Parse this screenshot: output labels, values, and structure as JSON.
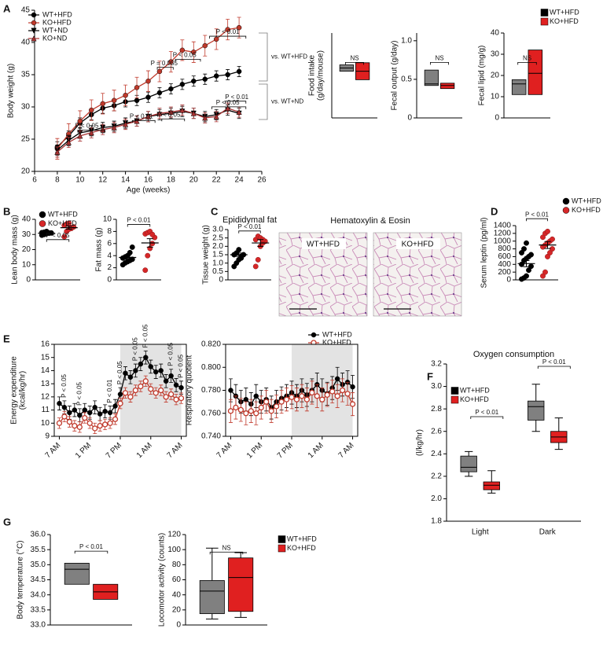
{
  "chart_data": [
    {
      "panel": "A",
      "type": "line",
      "ylabel": "Body weight (g)",
      "xlabel": "Age (weeks)",
      "x": [
        8,
        9,
        10,
        11,
        12,
        13,
        14,
        15,
        16,
        17,
        18,
        19,
        20,
        21,
        22,
        23,
        24
      ],
      "xlim": [
        6,
        26
      ],
      "xticks": [
        6,
        8,
        10,
        12,
        14,
        16,
        18,
        20,
        22,
        24,
        26
      ],
      "ylim": [
        20,
        45
      ],
      "yticks": [
        20,
        25,
        30,
        35,
        40,
        45
      ],
      "series": [
        {
          "name": "WT+HFD",
          "color": "#000000",
          "marker": "circle",
          "error": 0.8,
          "values": [
            23.8,
            25.5,
            27.5,
            28.8,
            29.8,
            30.2,
            30.8,
            31,
            31.5,
            32.2,
            32.8,
            33.5,
            34,
            34.3,
            34.8,
            35,
            35.5
          ]
        },
        {
          "name": "KO+HFD",
          "color": "#c0392b",
          "marker": "circle",
          "error": 1.6,
          "values": [
            23.5,
            25.8,
            27.8,
            29.5,
            30.5,
            31,
            31.8,
            33,
            34,
            35.5,
            37,
            38.8,
            38.5,
            39.5,
            40.5,
            42,
            42.3
          ]
        },
        {
          "name": "WT+ND",
          "color": "#000000",
          "marker": "triangle-down",
          "error": 0.8,
          "values": [
            23.3,
            24.8,
            26,
            26.3,
            26.8,
            27,
            27.5,
            27.8,
            28.5,
            28.8,
            29,
            29.3,
            29,
            28.5,
            28.8,
            29.5,
            29
          ]
        },
        {
          "name": "KO+ND",
          "color": "#a83232",
          "marker": "triangle-up",
          "error": 0.8,
          "values": [
            23,
            24.5,
            25.5,
            26,
            26.5,
            26.8,
            27.3,
            27.8,
            28.5,
            29,
            29.2,
            29.5,
            29,
            28.3,
            28.5,
            29.8,
            29.2
          ]
        }
      ],
      "annotations": [
        "P < 0.01",
        "P < 0.05",
        "P = 0.055",
        "P < 0.01",
        "P < 0.05",
        "P < 0.01",
        "P < 0.05",
        "P < 0.05"
      ],
      "comparisons": [
        "vs. WT+HFD",
        "vs. WT+ND"
      ]
    },
    {
      "type": "box",
      "ylabel": [
        "Food intake",
        "(g/day/mouse)"
      ],
      "ylim": [
        0,
        4
      ],
      "series": [
        {
          "color": "#808080",
          "boxes": [
            {
              "q1": 2.2,
              "median": 2.35,
              "q3": 2.5
            }
          ]
        },
        {
          "color": "#e02020",
          "boxes": [
            {
              "q1": 1.8,
              "median": 2.2,
              "q3": 2.6
            }
          ]
        }
      ],
      "annotations": [
        "NS"
      ]
    },
    {
      "type": "box",
      "ylabel": "Fecal output (g/day)",
      "ylim": [
        0,
        1.1
      ],
      "yticks": [
        0,
        0.5,
        {
          "value": 1,
          "label": "1.0"
        }
      ],
      "series": [
        {
          "color": "#808080",
          "boxes": [
            {
              "q1": 0.42,
              "median": 0.44,
              "q3": 0.62
            }
          ]
        },
        {
          "color": "#e02020",
          "boxes": [
            {
              "q1": 0.38,
              "median": 0.42,
              "q3": 0.45
            }
          ]
        }
      ],
      "annotations": [
        "NS"
      ]
    },
    {
      "type": "box",
      "ylabel": "Fecal lipid (mg/g)",
      "ylim": [
        0,
        40
      ],
      "yticks": [
        0,
        10,
        20,
        30,
        40
      ],
      "series": [
        {
          "name": "WT+HFD",
          "color": "#808080",
          "boxes": [
            {
              "q1": 11,
              "median": 16,
              "q3": 18
            }
          ]
        },
        {
          "name": "KO+HFD",
          "color": "#e02020",
          "boxes": [
            {
              "q1": 11,
              "median": 21,
              "q3": 32
            }
          ]
        }
      ],
      "annotations": [
        "NS"
      ]
    },
    {
      "panel": "B",
      "type": "dot",
      "ylabel": "Lean body mass (g)",
      "ylim": [
        0,
        40
      ],
      "yticks": [
        0,
        10,
        20,
        30,
        40
      ],
      "series": [
        {
          "name": "WT+HFD",
          "color": "#000000",
          "points": [
            29.5,
            30,
            30.5,
            31,
            31,
            31.2,
            31.5,
            32,
            30.8
          ],
          "mean": 30.8,
          "sem": 0.4
        },
        {
          "name": "KO+HFD",
          "color": "#d62728",
          "points": [
            28.5,
            32,
            33.5,
            34,
            35,
            36,
            37,
            37.5,
            34.5
          ],
          "mean": 34.5,
          "sem": 1.0
        }
      ],
      "annotations": [
        "P < 0.05"
      ]
    },
    {
      "type": "dot",
      "ylabel": "Fat mass (g)",
      "ylim": [
        0,
        10
      ],
      "yticks": [
        0,
        2,
        4,
        6,
        8,
        10
      ],
      "series": [
        {
          "color": "#000000",
          "points": [
            2.5,
            2.8,
            3.0,
            3.2,
            3.4,
            3.6,
            3.8,
            4.0,
            4.5,
            5.4
          ],
          "mean": 3.7,
          "sem": 0.3
        },
        {
          "color": "#d62728",
          "points": [
            1.6,
            4.0,
            5.2,
            6.0,
            7.0,
            7.6,
            7.8,
            8.0,
            7.5
          ],
          "mean": 6.1,
          "sem": 0.7
        }
      ],
      "annotations": [
        "P < 0.01"
      ]
    },
    {
      "panel": "C",
      "type": "dot",
      "title": "Epididymal fat",
      "ylabel": "Tissue weight (g)",
      "ylim": [
        0,
        3
      ],
      "yticks": [
        0,
        0.5,
        {
          "value": 1,
          "label": "1.0"
        },
        1.5,
        {
          "value": 2,
          "label": "2.0"
        },
        2.5,
        {
          "value": 3,
          "label": "3.0"
        }
      ],
      "series": [
        {
          "color": "#000000",
          "points": [
            0.8,
            1.0,
            1.2,
            1.4,
            1.5,
            1.5,
            1.6,
            1.8,
            1.3
          ],
          "mean": 1.5,
          "sem": 0.1
        },
        {
          "color": "#d62728",
          "points": [
            0.8,
            1.2,
            2.0,
            2.2,
            2.3,
            2.4,
            2.6,
            2.5,
            2.4
          ],
          "mean": 2.2,
          "sem": 0.2
        }
      ],
      "annotations": [
        "P < 0.01"
      ]
    },
    {
      "panel": "D",
      "type": "dot",
      "ylabel": "Serum leptin (pg/ml)",
      "ylim": [
        0,
        1400
      ],
      "yticks": [
        0,
        200,
        400,
        600,
        800,
        1000,
        1200,
        1400
      ],
      "series": [
        {
          "name": "WT+HFD",
          "color": "#000000",
          "points": [
            20,
            50,
            100,
            250,
            350,
            400,
            500,
            550,
            600,
            650,
            700,
            800,
            950
          ],
          "mean": 420,
          "sem": 80
        },
        {
          "name": "KO+HFD",
          "color": "#d62728",
          "points": [
            100,
            200,
            600,
            700,
            800,
            850,
            900,
            950,
            1000,
            1050,
            1100,
            1200,
            1250
          ],
          "mean": 900,
          "sem": 90
        }
      ],
      "annotations": [
        "P < 0.01"
      ]
    },
    {
      "panel": "E",
      "type": "line",
      "ylabel": [
        "Energy expenditure",
        "(kcal/kg/hr)"
      ],
      "x": [
        0,
        1,
        2,
        3,
        4,
        5,
        6,
        7,
        8,
        9,
        10,
        11,
        12,
        13,
        14,
        15,
        16,
        17,
        18,
        19,
        20,
        21,
        22,
        23,
        24
      ],
      "xlim": [
        -1,
        25
      ],
      "xticks": [
        {
          "value": 0,
          "label": "7 AM"
        },
        {
          "value": 6,
          "label": "1 PM"
        },
        {
          "value": 12,
          "label": "7 PM"
        },
        {
          "value": 18,
          "label": "1 AM"
        },
        {
          "value": 24,
          "label": "7 AM"
        }
      ],
      "ylim": [
        9,
        16
      ],
      "yticks": [
        9,
        10,
        11,
        12,
        13,
        14,
        15,
        16
      ],
      "shaded": [
        12,
        24
      ],
      "series": [
        {
          "name": "WT+HFD",
          "color": "#000000",
          "marker": "circle",
          "error": 0.5,
          "values": [
            11.5,
            11.2,
            10.8,
            11.0,
            10.6,
            11.0,
            10.8,
            11.2,
            10.7,
            10.9,
            10.8,
            11.3,
            12.2,
            13.8,
            13.5,
            14.0,
            14.5,
            15.0,
            14.3,
            13.9,
            14.0,
            13.2,
            13.6,
            12.9,
            12.7
          ]
        },
        {
          "name": "KO+HFD",
          "color": "#c0392b",
          "marker": "open-circle",
          "error": 0.4,
          "values": [
            10.0,
            10.5,
            10.1,
            9.8,
            9.7,
            10.4,
            10.0,
            9.6,
            9.8,
            9.9,
            10.0,
            10.3,
            11.5,
            12.3,
            12.0,
            12.5,
            12.8,
            13.2,
            12.6,
            12.3,
            12.5,
            12.0,
            12.2,
            11.8,
            11.9
          ]
        }
      ],
      "annotations": [
        "P < 0.05",
        "P < 0.05",
        "P < 0.01",
        "P < 0.05",
        "P < 0.05",
        "P < 0.05",
        "P < 0.05",
        "P < 0.05"
      ]
    },
    {
      "type": "line",
      "ylabel": "Respiratory quotient",
      "x": [
        0,
        1,
        2,
        3,
        4,
        5,
        6,
        7,
        8,
        9,
        10,
        11,
        12,
        13,
        14,
        15,
        16,
        17,
        18,
        19,
        20,
        21,
        22,
        23,
        24
      ],
      "xlim": [
        -1,
        25
      ],
      "xticks": [
        {
          "value": 0,
          "label": "7 AM"
        },
        {
          "value": 6,
          "label": "1 PM"
        },
        {
          "value": 12,
          "label": "7 PM"
        },
        {
          "value": 18,
          "label": "1 AM"
        },
        {
          "value": 24,
          "label": "7 AM"
        }
      ],
      "ylim": [
        0.74,
        0.82
      ],
      "yticks": [
        {
          "value": 0.74,
          "label": "0.740"
        },
        {
          "value": 0.76,
          "label": "0.760"
        },
        {
          "value": 0.78,
          "label": "0.780"
        },
        {
          "value": 0.8,
          "label": "0.800"
        },
        {
          "value": 0.82,
          "label": "0.820"
        }
      ],
      "shaded": [
        12,
        24
      ],
      "series": [
        {
          "color": "#000000",
          "marker": "circle",
          "error": 0.01,
          "values": [
            0.78,
            0.775,
            0.77,
            0.772,
            0.768,
            0.775,
            0.77,
            0.772,
            0.765,
            0.77,
            0.773,
            0.775,
            0.778,
            0.775,
            0.78,
            0.776,
            0.78,
            0.785,
            0.78,
            0.777,
            0.782,
            0.79,
            0.785,
            0.787,
            0.783
          ]
        },
        {
          "color": "#c0392b",
          "marker": "open-circle",
          "error": 0.01,
          "values": [
            0.762,
            0.765,
            0.763,
            0.76,
            0.762,
            0.76,
            0.765,
            0.77,
            0.762,
            0.766,
            0.77,
            0.772,
            0.774,
            0.772,
            0.775,
            0.772,
            0.778,
            0.775,
            0.772,
            0.776,
            0.779,
            0.775,
            0.78,
            0.777,
            0.768
          ]
        }
      ]
    },
    {
      "panel": "F",
      "type": "box",
      "title": "Oxygen consumption",
      "ylabel": "(l/kg/hr)",
      "categories": [
        "Light",
        "Dark"
      ],
      "ylim": [
        1.8,
        3.2
      ],
      "yticks": [
        1.8,
        {
          "value": 2,
          "label": "2.0"
        },
        2.2,
        2.4,
        2.6,
        2.8,
        {
          "value": 3,
          "label": "3.0"
        },
        3.2
      ],
      "series": [
        {
          "name": "WT+HFD",
          "color": "#808080",
          "boxes": [
            {
              "min": 2.2,
              "q1": 2.24,
              "median": 2.28,
              "q3": 2.38,
              "max": 2.42
            },
            {
              "min": 2.6,
              "q1": 2.7,
              "median": 2.82,
              "q3": 2.87,
              "max": 3.02
            }
          ]
        },
        {
          "name": "KO+HFD",
          "color": "#e02020",
          "boxes": [
            {
              "min": 2.05,
              "q1": 2.08,
              "median": 2.12,
              "q3": 2.15,
              "max": 2.25
            },
            {
              "min": 2.44,
              "q1": 2.5,
              "median": 2.55,
              "q3": 2.6,
              "max": 2.72
            }
          ]
        }
      ],
      "annotations": [
        "P < 0.01",
        "P < 0.01"
      ]
    },
    {
      "panel": "G",
      "type": "box",
      "ylabel": "Body temperature (°C)",
      "ylim": [
        33,
        36
      ],
      "yticks": [
        {
          "value": 33,
          "label": "33.0"
        },
        {
          "value": 33.5,
          "label": "33.5"
        },
        {
          "value": 34,
          "label": "34.0"
        },
        {
          "value": 34.5,
          "label": "34.5"
        },
        {
          "value": 35,
          "label": "35.0"
        },
        {
          "value": 35.5,
          "label": "35.5"
        },
        {
          "value": 36,
          "label": "36.0"
        }
      ],
      "series": [
        {
          "color": "#808080",
          "boxes": [
            {
              "q1": 34.35,
              "median": 34.85,
              "q3": 35.05
            }
          ]
        },
        {
          "color": "#e02020",
          "boxes": [
            {
              "q1": 33.85,
              "median": 34.1,
              "q3": 34.35
            }
          ]
        }
      ],
      "annotations": [
        "P < 0.01"
      ]
    },
    {
      "type": "box",
      "ylabel": "Locomotor activity (counts)",
      "ylim": [
        0,
        120
      ],
      "yticks": [
        0,
        20,
        40,
        60,
        80,
        100,
        120
      ],
      "series": [
        {
          "name": "WT+HFD",
          "color": "#808080",
          "boxes": [
            {
              "min": 8,
              "q1": 15,
              "median": 45,
              "q3": 59,
              "max": 102
            }
          ]
        },
        {
          "name": "KO+HFD",
          "color": "#e02020",
          "boxes": [
            {
              "min": 10,
              "q1": 18,
              "median": 63,
              "q3": 89,
              "max": 96
            }
          ]
        }
      ],
      "annotations": [
        "NS"
      ]
    }
  ],
  "histology": {
    "title": "Hematoxylin & Eosin",
    "labels": [
      "WT+HFD",
      "KO+HFD"
    ]
  }
}
